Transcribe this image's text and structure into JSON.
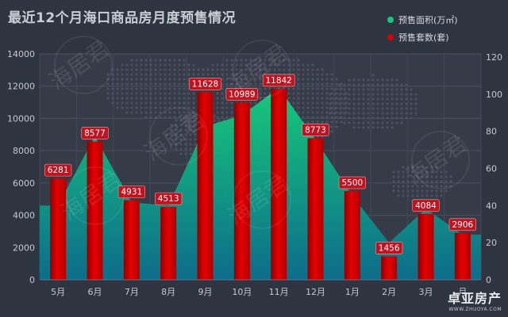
{
  "chart_data": {
    "type": "bar",
    "title": "最近12个月海口商品房月度预售情况",
    "categories": [
      "5月",
      "6月",
      "7月",
      "8月",
      "9月",
      "10月",
      "11月",
      "12月",
      "1月",
      "2月",
      "3月",
      "4月"
    ],
    "category_labels_visible": [
      "5月",
      "6月",
      "7月",
      "8月",
      "9月",
      "10月",
      "11月",
      "12月",
      "1月",
      "2月",
      "3月",
      "月"
    ],
    "series": [
      {
        "name": "预售面积(万㎡)",
        "type": "area",
        "axis": "left",
        "color": "#12c97a",
        "values": [
          4600,
          8900,
          4800,
          4600,
          9500,
          10200,
          11900,
          8700,
          5200,
          2300,
          4400,
          2800
        ]
      },
      {
        "name": "预售套数(套)",
        "type": "bar",
        "axis": "left",
        "color": "#d80000",
        "values": [
          6281,
          8577,
          4931,
          4513,
          11628,
          10989,
          11842,
          8773,
          5500,
          1456,
          4084,
          2906
        ],
        "data_labels": [
          "6281",
          "8577",
          "4931",
          "4513",
          "11628",
          "10989",
          "11842",
          "8773",
          "5500",
          "1456",
          "4084",
          "2906"
        ]
      }
    ],
    "yaxis_left": {
      "ylim": [
        0,
        14000
      ],
      "ticks": [
        "0",
        "2000",
        "4000",
        "6000",
        "8000",
        "10000",
        "12000",
        "14000"
      ]
    },
    "yaxis_right": {
      "ylim": [
        0,
        120
      ],
      "ticks": [
        "0",
        "20",
        "40",
        "60",
        "80",
        "100",
        "120"
      ]
    },
    "grid": true,
    "legend_position": "top-right"
  },
  "watermarks": [
    "海居君",
    "海居君",
    "海居君",
    "海居君",
    "海居君",
    "海居君"
  ],
  "logo": {
    "main": "卓亚房产",
    "sub": "WWW.ZHUOYA.COM"
  },
  "colors": {
    "background": "#2f3441",
    "plot_background": "#363b48",
    "bar": "#d80000",
    "area": "#12c97a",
    "area_deep": "#0e6f8a",
    "label_bg": "#c1121f",
    "axis_text": "#c6c8cf"
  }
}
